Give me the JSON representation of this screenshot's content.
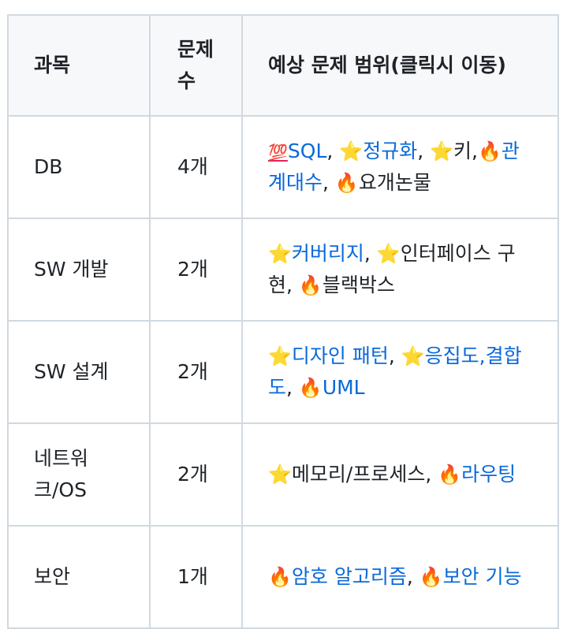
{
  "headers": {
    "subject": "과목",
    "count": "문제 수",
    "range": "예상 문제 범위(클릭시 이동)"
  },
  "rows": [
    {
      "subject": "DB",
      "count": "4개",
      "items": [
        {
          "emoji": "💯",
          "icon": "hundred-points-icon",
          "text": "SQL",
          "link": true,
          "sep": ", "
        },
        {
          "emoji": "⭐",
          "icon": "star-icon",
          "text": "정규화",
          "link": true,
          "sep": ", "
        },
        {
          "emoji": "⭐",
          "icon": "star-icon",
          "text": "키",
          "link": false,
          "sep": ","
        },
        {
          "emoji": "🔥",
          "icon": "fire-icon",
          "text": "관계대수",
          "link": true,
          "sep": ", "
        },
        {
          "emoji": "🔥",
          "icon": "fire-icon",
          "text": "요개논물",
          "link": false,
          "sep": ""
        }
      ]
    },
    {
      "subject": "SW 개발",
      "count": "2개",
      "items": [
        {
          "emoji": "⭐",
          "icon": "star-icon",
          "text": "커버리지",
          "link": true,
          "sep": ", "
        },
        {
          "emoji": "⭐",
          "icon": "star-icon",
          "text": "인터페이스 구현",
          "link": false,
          "sep": ", "
        },
        {
          "emoji": "🔥",
          "icon": "fire-icon",
          "text": "블랙박스",
          "link": false,
          "sep": ""
        }
      ]
    },
    {
      "subject": "SW 설계",
      "count": "2개",
      "items": [
        {
          "emoji": "⭐",
          "icon": "star-icon",
          "text": "디자인 패턴",
          "link": true,
          "sep": ", "
        },
        {
          "emoji": "⭐",
          "icon": "star-icon",
          "text": "응집도,결합도",
          "link": true,
          "sep": ", "
        },
        {
          "emoji": "🔥",
          "icon": "fire-icon",
          "text": "UML",
          "link": true,
          "sep": ""
        }
      ]
    },
    {
      "subject": "네트워크/OS",
      "count": "2개",
      "items": [
        {
          "emoji": "⭐",
          "icon": "star-icon",
          "text": "메모리/프로세스",
          "link": false,
          "sep": ", "
        },
        {
          "emoji": "🔥",
          "icon": "fire-icon",
          "text": "라우팅",
          "link": true,
          "sep": ""
        }
      ]
    },
    {
      "subject": "보안",
      "count": "1개",
      "items": [
        {
          "emoji": "🔥",
          "icon": "fire-icon",
          "text": "암호 알고리즘",
          "link": true,
          "sep": ", "
        },
        {
          "emoji": "🔥",
          "icon": "fire-icon",
          "text": "보안 기능",
          "link": true,
          "sep": ""
        }
      ]
    }
  ],
  "colors": {
    "link": "#0969da",
    "text": "#1f2328",
    "border": "#d1d9e0",
    "header_bg": "#f6f8fa"
  }
}
